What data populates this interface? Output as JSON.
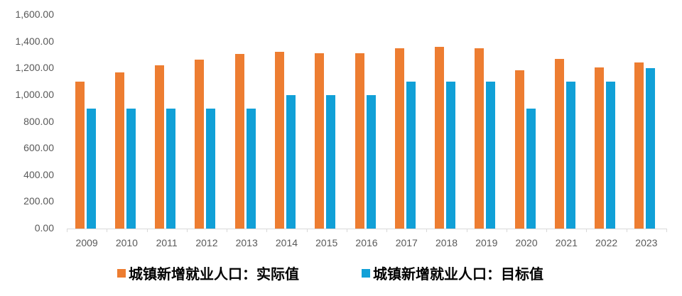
{
  "chart_data": {
    "type": "bar",
    "title": "",
    "xlabel": "",
    "ylabel": "",
    "ylim": [
      0,
      1600
    ],
    "yticks": [
      "0.00",
      "200.00",
      "400.00",
      "600.00",
      "800.00",
      "1,000.00",
      "1,200.00",
      "1,400.00",
      "1,600.00"
    ],
    "grid": false,
    "legend_position": "bottom",
    "categories": [
      "2009",
      "2010",
      "2011",
      "2012",
      "2013",
      "2014",
      "2015",
      "2016",
      "2017",
      "2018",
      "2019",
      "2020",
      "2021",
      "2022",
      "2023"
    ],
    "series": [
      {
        "name": "城镇新增就业人口：实际值",
        "color": "#ED7D31",
        "values": [
          1102,
          1168,
          1221,
          1266,
          1310,
          1322,
          1312,
          1314,
          1351,
          1361,
          1352,
          1186,
          1269,
          1206,
          1244
        ]
      },
      {
        "name": "城镇新增就业人口：目标值",
        "color": "#11A0D7",
        "values": [
          900,
          900,
          900,
          900,
          900,
          1000,
          1000,
          1000,
          1100,
          1100,
          1100,
          900,
          1100,
          1100,
          1200
        ]
      }
    ]
  }
}
